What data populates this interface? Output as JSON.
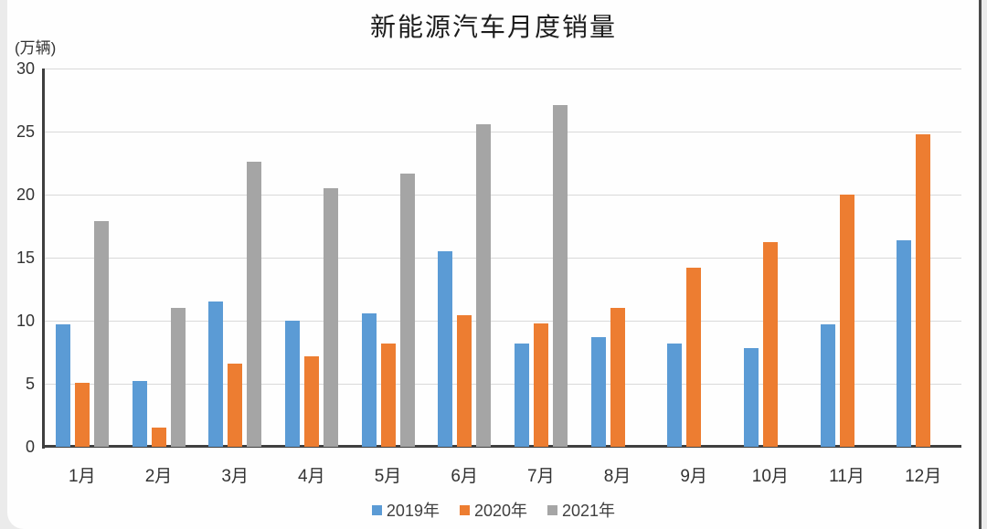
{
  "chart_data": {
    "type": "bar",
    "title": "新能源汽车月度销量",
    "unit_label": "(万辆)",
    "categories": [
      "1月",
      "2月",
      "3月",
      "4月",
      "5月",
      "6月",
      "7月",
      "8月",
      "9月",
      "10月",
      "11月",
      "12月"
    ],
    "series": [
      {
        "name": "2019年",
        "color": "#5b9bd5",
        "values": [
          9.7,
          5.2,
          11.5,
          10.0,
          10.6,
          15.5,
          8.2,
          8.7,
          8.2,
          7.8,
          9.7,
          16.4
        ]
      },
      {
        "name": "2020年",
        "color": "#ed7d31",
        "values": [
          5.1,
          1.5,
          6.6,
          7.2,
          8.2,
          10.4,
          9.8,
          11.0,
          14.2,
          16.2,
          20.0,
          24.8
        ]
      },
      {
        "name": "2021年",
        "color": "#a5a5a5",
        "values": [
          17.9,
          11.0,
          22.6,
          20.5,
          21.7,
          25.6,
          27.1,
          null,
          null,
          null,
          null,
          null
        ]
      }
    ],
    "ylim": [
      0,
      30
    ],
    "y_ticks": [
      0,
      5,
      10,
      15,
      20,
      25,
      30
    ],
    "grid": true,
    "legend_position": "bottom"
  },
  "colors": {
    "gridline": "#d9d9d9",
    "axis": "#3f3f3f",
    "title_text": "#1c1c1c",
    "tick_text": "#333333",
    "page_background": "#ebebeb",
    "card_background": "#fefefe",
    "window_border": "#4b4b4b"
  }
}
